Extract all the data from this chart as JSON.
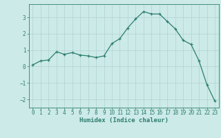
{
  "x": [
    0,
    1,
    2,
    3,
    4,
    5,
    6,
    7,
    8,
    9,
    10,
    11,
    12,
    13,
    14,
    15,
    16,
    17,
    18,
    19,
    20,
    21,
    22,
    23
  ],
  "y": [
    0.1,
    0.35,
    0.4,
    0.9,
    0.75,
    0.85,
    0.7,
    0.65,
    0.55,
    0.65,
    1.4,
    1.7,
    2.35,
    2.9,
    3.35,
    3.2,
    3.2,
    2.75,
    2.3,
    1.6,
    1.35,
    0.35,
    -1.1,
    -2.1
  ],
  "xlim": [
    -0.5,
    23.5
  ],
  "ylim": [
    -2.5,
    3.8
  ],
  "yticks": [
    -2,
    -1,
    0,
    1,
    2,
    3
  ],
  "xticks": [
    0,
    1,
    2,
    3,
    4,
    5,
    6,
    7,
    8,
    9,
    10,
    11,
    12,
    13,
    14,
    15,
    16,
    17,
    18,
    19,
    20,
    21,
    22,
    23
  ],
  "xlabel": "Humidex (Indice chaleur)",
  "line_color": "#2d7d6e",
  "marker": "+",
  "bg_color": "#cceae8",
  "grid_color": "#aed4d0",
  "tick_color": "#2d7d6e",
  "label_color": "#2d7d6e",
  "spine_color": "#2d7d6e",
  "xlabel_fontsize": 6.5,
  "tick_fontsize": 5.5,
  "title": ""
}
